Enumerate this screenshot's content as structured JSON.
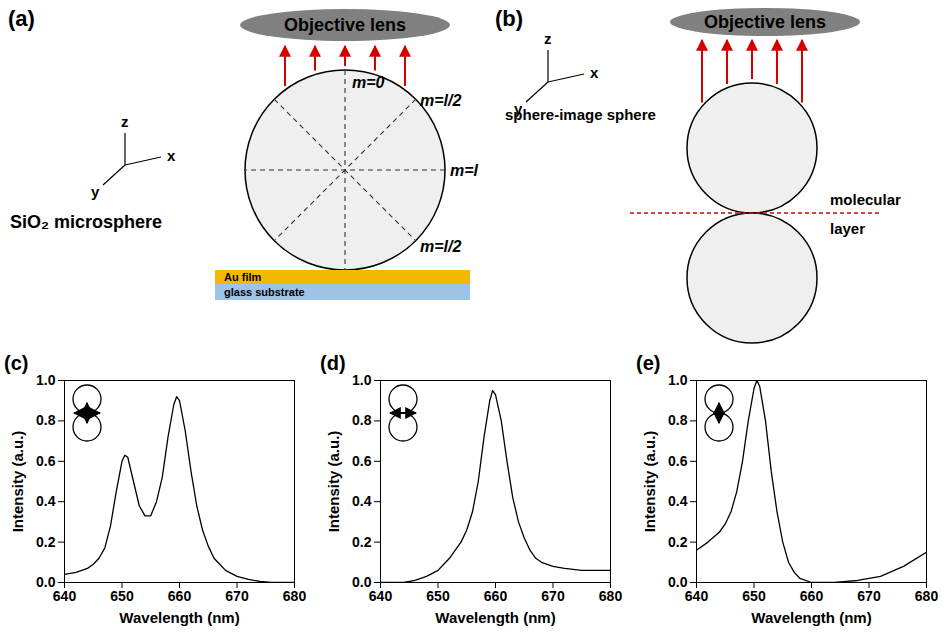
{
  "diagrams": {
    "a": {
      "label": "(a)",
      "lens": "Objective lens",
      "axes": [
        "z",
        "x",
        "y"
      ],
      "mode_labels": [
        "m=0",
        "m=l/2",
        "m=l",
        "m=l/2"
      ],
      "sphere": "SiO₂ microsphere",
      "film": "Au film",
      "substrate": "glass substrate"
    },
    "b": {
      "label": "(b)",
      "lens": "Objective lens",
      "axes": [
        "z",
        "x",
        "y"
      ],
      "sphere": "sphere-image sphere",
      "layer": "molecular layer"
    }
  },
  "chart_data": [
    {
      "type": "line",
      "title": "(c)",
      "x_label": "Wavelength (nm)",
      "y_label": "Intensity (a.u.)",
      "xlim": [
        640,
        680
      ],
      "xticks": [
        640,
        650,
        660,
        670,
        680
      ],
      "ylim": [
        0,
        1
      ],
      "yticks": [
        {
          "value": 0,
          "label": "0.0"
        },
        {
          "value": 0.2,
          "label": "0.2"
        },
        {
          "value": 0.4,
          "label": "0.4"
        },
        {
          "value": 0.6,
          "label": "0.6"
        },
        {
          "value": 0.8,
          "label": "0.8"
        },
        {
          "value": 1,
          "label": "1.0"
        }
      ],
      "color": "#000000",
      "x": [
        640,
        641,
        642,
        643,
        644,
        645,
        646,
        647,
        648,
        649,
        650,
        650.5,
        651,
        652,
        653,
        654,
        655,
        656,
        657,
        658,
        659,
        659.5,
        660,
        661,
        662,
        663,
        664,
        665,
        666,
        667,
        668,
        669,
        670,
        672,
        674,
        676,
        678,
        680
      ],
      "values": [
        0.04,
        0.045,
        0.05,
        0.06,
        0.07,
        0.09,
        0.12,
        0.17,
        0.28,
        0.45,
        0.6,
        0.63,
        0.62,
        0.5,
        0.38,
        0.33,
        0.33,
        0.4,
        0.52,
        0.72,
        0.88,
        0.92,
        0.9,
        0.75,
        0.55,
        0.38,
        0.26,
        0.18,
        0.12,
        0.09,
        0.06,
        0.045,
        0.03,
        0.015,
        0.005,
        0.0,
        0.0,
        0.0
      ]
    },
    {
      "type": "line",
      "title": "(d)",
      "x_label": "Wavelength (nm)",
      "y_label": "Intensity (a.u.)",
      "xlim": [
        640,
        680
      ],
      "xticks": [
        640,
        650,
        660,
        670,
        680
      ],
      "ylim": [
        0,
        1
      ],
      "yticks": [
        {
          "value": 0,
          "label": "0.0"
        },
        {
          "value": 0.2,
          "label": "0.2"
        },
        {
          "value": 0.4,
          "label": "0.4"
        },
        {
          "value": 0.6,
          "label": "0.6"
        },
        {
          "value": 0.8,
          "label": "0.8"
        },
        {
          "value": 1,
          "label": "1.0"
        }
      ],
      "color": "#000000",
      "x": [
        640,
        644,
        646,
        648,
        650,
        651,
        652,
        653,
        654,
        655,
        656,
        657,
        658,
        659,
        659.5,
        660,
        661,
        662,
        663,
        664,
        665,
        666,
        667,
        668,
        670,
        672,
        675,
        680
      ],
      "values": [
        0.0,
        0.0,
        0.01,
        0.03,
        0.06,
        0.09,
        0.12,
        0.16,
        0.2,
        0.26,
        0.35,
        0.5,
        0.72,
        0.9,
        0.95,
        0.93,
        0.8,
        0.6,
        0.42,
        0.3,
        0.22,
        0.16,
        0.12,
        0.1,
        0.08,
        0.07,
        0.06,
        0.06
      ]
    },
    {
      "type": "line",
      "title": "(e)",
      "x_label": "Wavelength (nm)",
      "y_label": "Intensity (a.u.)",
      "xlim": [
        640,
        680
      ],
      "xticks": [
        640,
        650,
        660,
        670,
        680
      ],
      "ylim": [
        0,
        1
      ],
      "yticks": [
        {
          "value": 0,
          "label": "0.0"
        },
        {
          "value": 0.2,
          "label": "0.2"
        },
        {
          "value": 0.4,
          "label": "0.4"
        },
        {
          "value": 0.6,
          "label": "0.6"
        },
        {
          "value": 0.8,
          "label": "0.8"
        },
        {
          "value": 1,
          "label": "1.0"
        }
      ],
      "color": "#000000",
      "x": [
        640,
        642,
        644,
        645,
        646,
        647,
        648,
        649,
        650,
        650.5,
        651,
        652,
        653,
        654,
        655,
        656,
        657,
        658,
        660,
        664,
        668,
        672,
        676,
        680
      ],
      "values": [
        0.16,
        0.2,
        0.25,
        0.29,
        0.35,
        0.45,
        0.6,
        0.8,
        0.96,
        1.0,
        0.97,
        0.8,
        0.55,
        0.35,
        0.2,
        0.1,
        0.05,
        0.02,
        0.0,
        0.0,
        0.01,
        0.03,
        0.08,
        0.15
      ]
    }
  ]
}
